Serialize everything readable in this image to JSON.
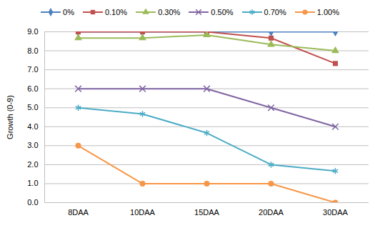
{
  "chart_data": {
    "type": "line",
    "y_label": "Growth (0-9)",
    "categories": [
      "8DAA",
      "10DAA",
      "15DAA",
      "20DAA",
      "30DAA"
    ],
    "series": [
      {
        "name": "0%",
        "color": "#4f81bd",
        "marker": "diamond",
        "values": [
          9,
          9,
          9,
          9,
          9
        ]
      },
      {
        "name": "0.10%",
        "color": "#c0504d",
        "marker": "square",
        "values": [
          9,
          9,
          9,
          8.67,
          7.33
        ]
      },
      {
        "name": "0.30%",
        "color": "#9bbb59",
        "marker": "triangle",
        "values": [
          8.67,
          8.67,
          8.83,
          8.33,
          8
        ]
      },
      {
        "name": "0.50%",
        "color": "#8064a2",
        "marker": "times",
        "values": [
          6,
          6,
          6,
          5,
          4
        ]
      },
      {
        "name": "0.70%",
        "color": "#4bacc6",
        "marker": "asterisk",
        "values": [
          5,
          4.67,
          3.67,
          2,
          1.67
        ]
      },
      {
        "name": "1.00%",
        "color": "#f79646",
        "marker": "circle",
        "values": [
          3,
          1,
          1,
          1,
          0
        ]
      }
    ],
    "ylim": [
      0,
      9
    ],
    "yticks": [
      {
        "value": 0,
        "label": "0.0"
      },
      {
        "value": 1,
        "label": "1.0"
      },
      {
        "value": 2,
        "label": "2.0"
      },
      {
        "value": 3,
        "label": "3.0"
      },
      {
        "value": 4,
        "label": "4.0"
      },
      {
        "value": 5,
        "label": "5.0"
      },
      {
        "value": 6,
        "label": "6.0"
      },
      {
        "value": 7,
        "label": "7.0"
      },
      {
        "value": 8,
        "label": "8.0"
      },
      {
        "value": 9,
        "label": "9.0"
      }
    ],
    "grid": true,
    "legend": "top"
  }
}
